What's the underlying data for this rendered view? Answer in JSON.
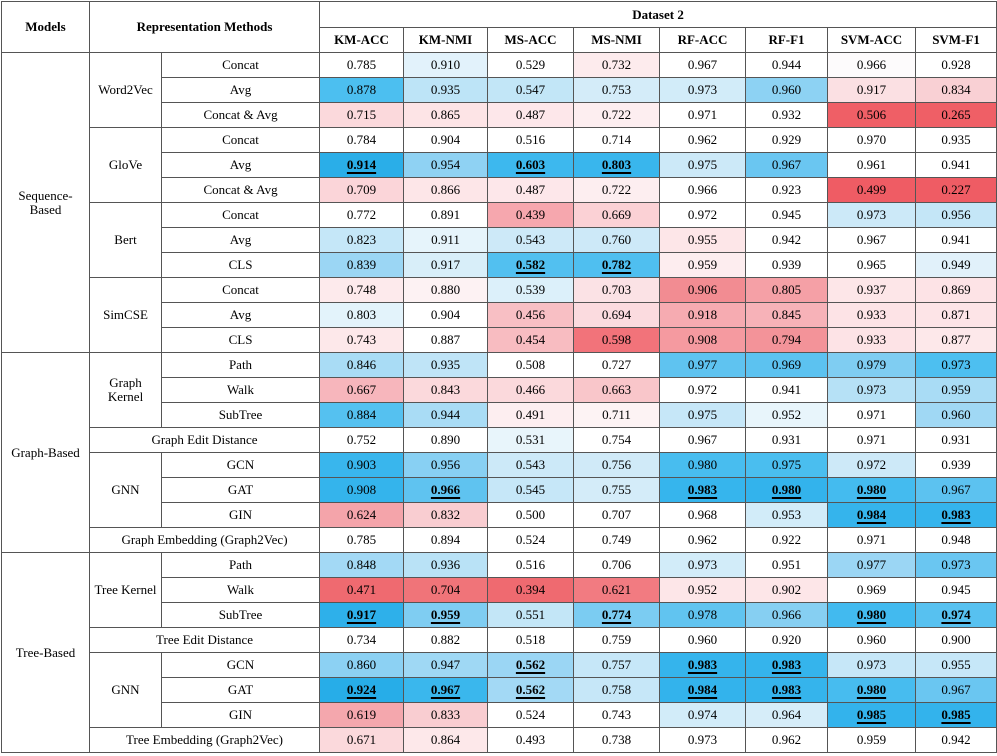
{
  "header": {
    "models": "Models",
    "methods": "Representation Methods",
    "dataset": "Dataset 2",
    "metrics": [
      "KM-ACC",
      "KM-NMI",
      "MS-ACC",
      "MS-NMI",
      "RF-ACC",
      "RF-F1",
      "SVM-ACC",
      "SVM-F1"
    ]
  },
  "sections": [
    {
      "model": "Sequence-\nBased",
      "groups": [
        {
          "name": "Word2Vec",
          "rows": [
            {
              "method": "Concat",
              "values": [
                "0.785",
                "0.910",
                "0.529",
                "0.732",
                "0.967",
                "0.944",
                "0.966",
                "0.928"
              ],
              "colors": [
                "#ffffff",
                "#e2f2fb",
                "#ffffff",
                "#fdebed",
                "#ffffff",
                "#ffffff",
                "#fdfbfc",
                "#ffffff"
              ]
            },
            {
              "method": "Avg",
              "values": [
                "0.878",
                "0.935",
                "0.547",
                "0.753",
                "0.973",
                "0.960",
                "0.917",
                "0.834"
              ],
              "colors": [
                "#4cbff0",
                "#bde4f7",
                "#c2e6f7",
                "#d4ecf9",
                "#d2ecf9",
                "#8dd2f3",
                "#fbe0e3",
                "#f9d0d4"
              ]
            },
            {
              "method": "Concat & Avg",
              "values": [
                "0.715",
                "0.865",
                "0.487",
                "0.722",
                "0.971",
                "0.932",
                "0.506",
                "0.265"
              ],
              "colors": [
                "#fbd9dc",
                "#fde4e6",
                "#fde7ea",
                "#fdeef0",
                "#ffffff",
                "#ffffff",
                "#ef5f66",
                "#ef5f66"
              ]
            }
          ]
        },
        {
          "name": "GloVe",
          "rows": [
            {
              "method": "Concat",
              "values": [
                "0.784",
                "0.904",
                "0.516",
                "0.714",
                "0.962",
                "0.929",
                "0.970",
                "0.935"
              ],
              "colors": [
                "#ffffff",
                "#ffffff",
                "#ffffff",
                "#ffffff",
                "#ffffff",
                "#ffffff",
                "#ffffff",
                "#ffffff"
              ]
            },
            {
              "method": "Avg",
              "values": [
                "0.914",
                "0.954",
                "0.603",
                "0.803",
                "0.975",
                "0.967",
                "0.961",
                "0.941"
              ],
              "colors": [
                "#2aaee8",
                "#8fd2f3",
                "#3db8ee",
                "#39b6ed",
                "#cce9f8",
                "#6ac6f1",
                "#ffffff",
                "#ffffff"
              ]
            },
            {
              "method": "Concat & Avg",
              "values": [
                "0.709",
                "0.866",
                "0.487",
                "0.722",
                "0.966",
                "0.923",
                "0.499",
                "0.227"
              ],
              "colors": [
                "#fbd5d9",
                "#fde6e8",
                "#fde7ea",
                "#fdeef0",
                "#ffffff",
                "#ffffff",
                "#ef5c64",
                "#ef5c64"
              ]
            }
          ]
        },
        {
          "name": "Bert",
          "rows": [
            {
              "method": "Concat",
              "values": [
                "0.772",
                "0.891",
                "0.439",
                "0.669",
                "0.972",
                "0.945",
                "0.973",
                "0.956"
              ],
              "colors": [
                "#ffffff",
                "#ffffff",
                "#f6a7ae",
                "#fbd1d5",
                "#ffffff",
                "#ffffff",
                "#cce9f8",
                "#c4e6f7"
              ]
            },
            {
              "method": "Avg",
              "values": [
                "0.823",
                "0.911",
                "0.543",
                "0.760",
                "0.955",
                "0.942",
                "0.967",
                "0.941"
              ],
              "colors": [
                "#c5e7f8",
                "#e6f4fb",
                "#cde9f8",
                "#cde9f8",
                "#fde6e8",
                "#ffffff",
                "#ffffff",
                "#ffffff"
              ]
            },
            {
              "method": "CLS",
              "values": [
                "0.839",
                "0.917",
                "0.582",
                "0.782",
                "0.959",
                "0.939",
                "0.965",
                "0.949"
              ],
              "colors": [
                "#9bd6f4",
                "#d8eef9",
                "#52c0f0",
                "#4fbff0",
                "#fdedef",
                "#ffffff",
                "#ffffff",
                "#e1f1fa"
              ]
            }
          ]
        },
        {
          "name": "SimCSE",
          "rows": [
            {
              "method": "Concat",
              "values": [
                "0.748",
                "0.880",
                "0.539",
                "0.703",
                "0.906",
                "0.805",
                "0.937",
                "0.869"
              ],
              "colors": [
                "#fdeaec",
                "#fdf2f3",
                "#dcf0fa",
                "#fbe2e5",
                "#f28c92",
                "#f5a0a6",
                "#fde6e8",
                "#fde3e6"
              ]
            },
            {
              "method": "Avg",
              "values": [
                "0.803",
                "0.904",
                "0.456",
                "0.694",
                "0.918",
                "0.845",
                "0.933",
                "0.871"
              ],
              "colors": [
                "#e3f3fb",
                "#ffffff",
                "#f8bfc4",
                "#fbdbdf",
                "#f6abb1",
                "#f7b2b8",
                "#fde3e6",
                "#fde4e7"
              ]
            },
            {
              "method": "CLS",
              "values": [
                "0.743",
                "0.887",
                "0.454",
                "0.598",
                "0.908",
                "0.794",
                "0.933",
                "0.877"
              ],
              "colors": [
                "#fde8ea",
                "#ffffff",
                "#f8bcc1",
                "#f2737a",
                "#f59aa0",
                "#f39399",
                "#fde3e6",
                "#fde8ea"
              ]
            }
          ]
        }
      ]
    },
    {
      "model": "Graph-Based",
      "groups": [
        {
          "name": "Graph\nKernel",
          "rows": [
            {
              "method": "Path",
              "values": [
                "0.846",
                "0.935",
                "0.508",
                "0.727",
                "0.977",
                "0.969",
                "0.979",
                "0.973"
              ],
              "colors": [
                "#a9dcf5",
                "#bfe4f7",
                "#ffffff",
                "#ffffff",
                "#5fc3f0",
                "#5cc2f0",
                "#7fcdf2",
                "#4dbff0"
              ]
            },
            {
              "method": "Walk",
              "values": [
                "0.667",
                "0.843",
                "0.466",
                "0.663",
                "0.972",
                "0.941",
                "0.973",
                "0.959"
              ],
              "colors": [
                "#f7b6bc",
                "#fbd9dc",
                "#fbd9dc",
                "#f9c6ca",
                "#ffffff",
                "#ffffff",
                "#b6e1f6",
                "#a9dcf5"
              ]
            },
            {
              "method": "SubTree",
              "values": [
                "0.884",
                "0.944",
                "0.491",
                "0.711",
                "0.975",
                "0.952",
                "0.971",
                "0.960"
              ],
              "colors": [
                "#55c1f0",
                "#a9dcf5",
                "#fdeef0",
                "#fdf3f4",
                "#c6e7f8",
                "#e8f5fb",
                "#ffffff",
                "#a0d8f4"
              ]
            }
          ]
        },
        {
          "name": "",
          "span": "Graph Edit Distance",
          "rows": [
            {
              "method": "",
              "values": [
                "0.752",
                "0.890",
                "0.531",
                "0.754",
                "0.967",
                "0.931",
                "0.971",
                "0.931"
              ],
              "colors": [
                "#ffffff",
                "#ffffff",
                "#e8f5fb",
                "#ffffff",
                "#ffffff",
                "#ffffff",
                "#ffffff",
                "#ffffff"
              ]
            }
          ]
        },
        {
          "name": "GNN",
          "rows": [
            {
              "method": "GCN",
              "values": [
                "0.903",
                "0.956",
                "0.543",
                "0.756",
                "0.980",
                "0.975",
                "0.972",
                "0.939"
              ],
              "colors": [
                "#39b6ed",
                "#88d0f3",
                "#cce9f8",
                "#d0eaf8",
                "#48bdef",
                "#4abeef",
                "#cde9f8",
                "#ffffff"
              ]
            },
            {
              "method": "GAT",
              "values": [
                "0.908",
                "0.966",
                "0.545",
                "0.755",
                "0.983",
                "0.980",
                "0.980",
                "0.967"
              ],
              "colors": [
                "#34b4ec",
                "#5fc3f0",
                "#c6e7f8",
                "#d4ecf9",
                "#36b5ed",
                "#33b3ec",
                "#44bbef",
                "#5cc2f0"
              ]
            },
            {
              "method": "GIN",
              "values": [
                "0.624",
                "0.832",
                "0.500",
                "0.707",
                "0.968",
                "0.953",
                "0.984",
                "0.983"
              ],
              "colors": [
                "#f4a4aa",
                "#f9cdd1",
                "#ffffff",
                "#ffffff",
                "#ffffff",
                "#d2ecf9",
                "#35b4ec",
                "#35b4ec"
              ]
            }
          ]
        },
        {
          "name": "",
          "span": "Graph Embedding (Graph2Vec)",
          "rows": [
            {
              "method": "",
              "values": [
                "0.785",
                "0.894",
                "0.524",
                "0.749",
                "0.962",
                "0.922",
                "0.971",
                "0.948"
              ],
              "colors": [
                "#ffffff",
                "#ffffff",
                "#ffffff",
                "#ffffff",
                "#ffffff",
                "#ffffff",
                "#ffffff",
                "#ffffff"
              ]
            }
          ]
        }
      ]
    },
    {
      "model": "Tree-Based",
      "groups": [
        {
          "name": "Tree Kernel",
          "rows": [
            {
              "method": "Path",
              "values": [
                "0.848",
                "0.936",
                "0.516",
                "0.706",
                "0.973",
                "0.951",
                "0.977",
                "0.973"
              ],
              "colors": [
                "#a3d9f5",
                "#b9e2f6",
                "#ffffff",
                "#ffffff",
                "#d2ecf9",
                "#ffffff",
                "#9bd6f4",
                "#6ac6f1"
              ]
            },
            {
              "method": "Walk",
              "values": [
                "0.471",
                "0.704",
                "0.394",
                "0.621",
                "0.952",
                "0.902",
                "0.969",
                "0.945"
              ],
              "colors": [
                "#ef6a70",
                "#f07479",
                "#ef6a70",
                "#f27b81",
                "#fde6e8",
                "#fde6e8",
                "#ffffff",
                "#ffffff"
              ]
            },
            {
              "method": "SubTree",
              "values": [
                "0.917",
                "0.959",
                "0.551",
                "0.774",
                "0.978",
                "0.966",
                "0.980",
                "0.974"
              ],
              "colors": [
                "#2eb0ea",
                "#7fcdf2",
                "#c3e6f7",
                "#7bccf2",
                "#61c4f0",
                "#86cff2",
                "#42baef",
                "#57c1f0"
              ]
            }
          ]
        },
        {
          "name": "",
          "span": "Tree Edit Distance",
          "rows": [
            {
              "method": "",
              "values": [
                "0.734",
                "0.882",
                "0.518",
                "0.759",
                "0.960",
                "0.920",
                "0.960",
                "0.900"
              ],
              "colors": [
                "#ffffff",
                "#ffffff",
                "#ffffff",
                "#ffffff",
                "#ffffff",
                "#ffffff",
                "#ffffff",
                "#ffffff"
              ]
            }
          ]
        },
        {
          "name": "GNN",
          "rows": [
            {
              "method": "GCN",
              "values": [
                "0.860",
                "0.947",
                "0.562",
                "0.757",
                "0.983",
                "0.983",
                "0.973",
                "0.955"
              ],
              "colors": [
                "#8cd1f3",
                "#9fd8f4",
                "#9bd6f4",
                "#c6e7f8",
                "#35b4ec",
                "#35b4ec",
                "#c6e7f8",
                "#c6e7f8"
              ]
            },
            {
              "method": "GAT",
              "values": [
                "0.924",
                "0.967",
                "0.562",
                "0.758",
                "0.984",
                "0.983",
                "0.980",
                "0.967"
              ],
              "colors": [
                "#27ade8",
                "#3ab7ed",
                "#a3d9f5",
                "#c6e7f8",
                "#33b3ec",
                "#35b4ec",
                "#47bcef",
                "#6ac6f1"
              ]
            },
            {
              "method": "GIN",
              "values": [
                "0.619",
                "0.833",
                "0.524",
                "0.743",
                "0.974",
                "0.964",
                "0.985",
                "0.985"
              ],
              "colors": [
                "#f4a7ad",
                "#f9cdd1",
                "#ffffff",
                "#ffffff",
                "#d2ecf9",
                "#d6edf9",
                "#33b3ec",
                "#33b3ec"
              ]
            }
          ]
        },
        {
          "name": "",
          "span": "Tree Embedding (Graph2Vec)",
          "rows": [
            {
              "method": "",
              "values": [
                "0.671",
                "0.864",
                "0.493",
                "0.738",
                "0.973",
                "0.962",
                "0.959",
                "0.942"
              ],
              "colors": [
                "#fbd9dc",
                "#fde8ea",
                "#ffffff",
                "#ffffff",
                "#ffffff",
                "#ffffff",
                "#ffffff",
                "#ffffff"
              ]
            }
          ]
        }
      ]
    }
  ],
  "best": [
    "1-0-1-0",
    "1-0-1-2",
    "1-0-1-3",
    "1-2-2-2",
    "1-2-2-3",
    "6-0-1-1",
    "6-0-1-4",
    "6-0-1-5",
    "6-0-1-6",
    "6-0-2-6",
    "6-0-2-7",
    "7-0-2-0",
    "7-0-2-1",
    "7-0-2-3",
    "7-0-2-6",
    "7-0-2-7",
    "7-2-0-2",
    "7-2-0-4",
    "7-2-0-5",
    "7-2-1-0",
    "7-2-1-1",
    "7-2-1-2",
    "7-2-1-4",
    "7-2-1-5",
    "7-2-1-6",
    "7-2-2-6",
    "7-2-2-7"
  ]
}
